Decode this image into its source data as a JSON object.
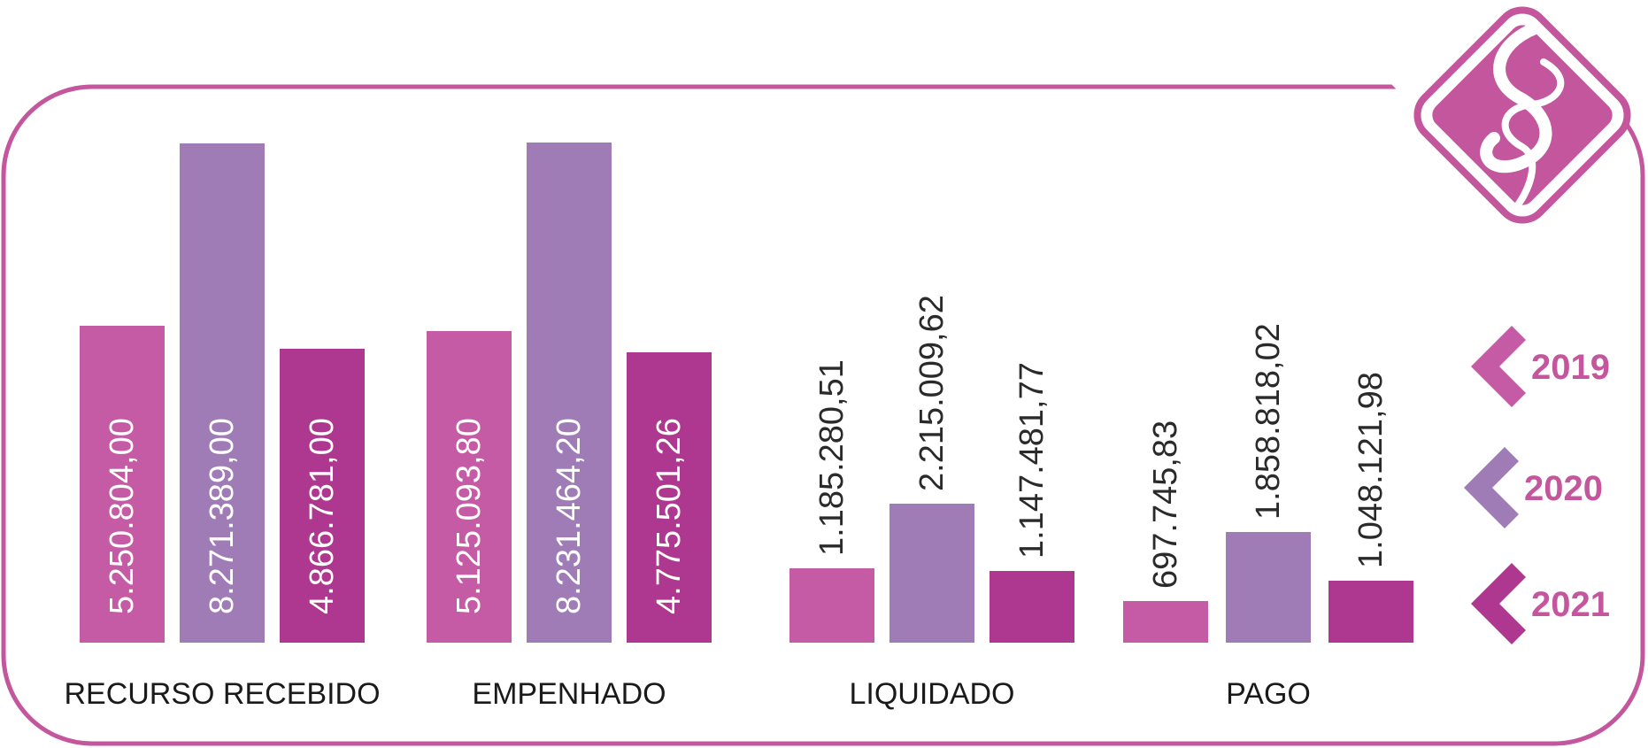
{
  "chart_data": {
    "type": "bar",
    "title": "",
    "xlabel": "",
    "ylabel": "",
    "categories": [
      "RECURSO RECEBIDO",
      "EMPENHADO",
      "LIQUIDADO",
      "PAGO"
    ],
    "series": [
      {
        "name": "2019",
        "color": "#c65ba5",
        "values": [
          5250804.0,
          5125093.8,
          1185280.51,
          697745.83
        ],
        "labels": [
          "5.250.804,00",
          "5.125.093,80",
          "1.185.280,51",
          "697.745,83"
        ]
      },
      {
        "name": "2020",
        "color": "#a07cb7",
        "values": [
          8271389.0,
          8231464.2,
          2215009.62,
          1858818.02
        ],
        "labels": [
          "8.271.389,00",
          "8.231.464,20",
          "2.215.009,62",
          "1.858.818,02"
        ]
      },
      {
        "name": "2021",
        "color": "#ae388f",
        "values": [
          4866781.0,
          4775501.26,
          1147481.77,
          1048121.98
        ],
        "labels": [
          "4.866.781,00",
          "4.775.501,26",
          "1.147.481,77",
          "1.048.121,98"
        ]
      }
    ],
    "category_scale": [
      {
        "max": 8271389.0
      },
      {
        "max": 8231464.2
      },
      {
        "max": 2215009.62
      },
      {
        "max": 1858818.02
      }
    ],
    "label_placement": [
      "inside",
      "inside",
      "above",
      "above"
    ],
    "legend_placement": "right",
    "grid": false
  },
  "colors": {
    "frame": "#c4569e",
    "logo": "#c4569e",
    "legend_text": "#c4569e",
    "inside_label": "#ffffff",
    "above_label": "#2a2a2a"
  },
  "logo_icon": "diamond-s-logo-icon"
}
